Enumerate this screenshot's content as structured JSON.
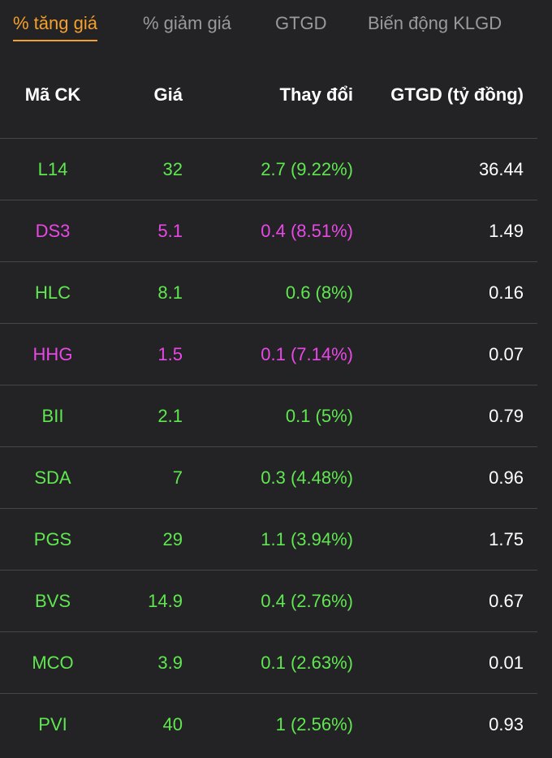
{
  "tabs": [
    {
      "label": "% tăng giá",
      "active": true
    },
    {
      "label": "% giảm giá",
      "active": false
    },
    {
      "label": "GTGD",
      "active": false
    },
    {
      "label": "Biến động KLGD",
      "active": false
    }
  ],
  "table": {
    "headers": [
      "Mã CK",
      "Giá",
      "Thay đổi",
      "GTGD (tỷ đồng)"
    ],
    "rows": [
      {
        "code": "L14",
        "price": "32",
        "change": "2.7 (9.22%)",
        "value": "36.44",
        "status": "up"
      },
      {
        "code": "DS3",
        "price": "5.1",
        "change": "0.4 (8.51%)",
        "value": "1.49",
        "status": "ceiling"
      },
      {
        "code": "HLC",
        "price": "8.1",
        "change": "0.6 (8%)",
        "value": "0.16",
        "status": "up"
      },
      {
        "code": "HHG",
        "price": "1.5",
        "change": "0.1 (7.14%)",
        "value": "0.07",
        "status": "ceiling"
      },
      {
        "code": "BII",
        "price": "2.1",
        "change": "0.1 (5%)",
        "value": "0.79",
        "status": "up"
      },
      {
        "code": "SDA",
        "price": "7",
        "change": "0.3 (4.48%)",
        "value": "0.96",
        "status": "up"
      },
      {
        "code": "PGS",
        "price": "29",
        "change": "1.1 (3.94%)",
        "value": "1.75",
        "status": "up"
      },
      {
        "code": "BVS",
        "price": "14.9",
        "change": "0.4 (2.76%)",
        "value": "0.67",
        "status": "up"
      },
      {
        "code": "MCO",
        "price": "3.9",
        "change": "0.1 (2.63%)",
        "value": "0.01",
        "status": "up"
      },
      {
        "code": "PVI",
        "price": "40",
        "change": "1 (2.56%)",
        "value": "0.93",
        "status": "up"
      }
    ]
  },
  "colors": {
    "accent": "#f5a02a",
    "up": "#5fe74f",
    "ceiling": "#e948e6",
    "background": "#232326"
  }
}
